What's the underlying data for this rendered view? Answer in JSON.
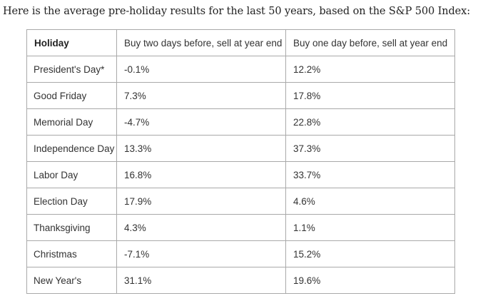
{
  "intro_text": "Here is the average pre-holiday results for the last 50 years, based on the S&P 500 Index:",
  "table": {
    "headers": [
      "Holiday",
      "Buy two days before, sell at year end",
      "Buy one day before, sell at year end"
    ],
    "rows": [
      [
        "President's Day*",
        "-0.1%",
        "12.2%"
      ],
      [
        "Good Friday",
        "7.3%",
        "17.8%"
      ],
      [
        "Memorial Day",
        "-4.7%",
        "22.8%"
      ],
      [
        "Independence Day",
        "13.3%",
        "37.3%"
      ],
      [
        "Labor Day",
        "16.8%",
        "33.7%"
      ],
      [
        "Election Day",
        "17.9%",
        "4.6%"
      ],
      [
        "Thanksgiving",
        "4.3%",
        "1.1%"
      ],
      [
        "Christmas",
        "-7.1%",
        "15.2%"
      ],
      [
        "New Year's",
        "31.1%",
        "19.6%"
      ]
    ]
  }
}
